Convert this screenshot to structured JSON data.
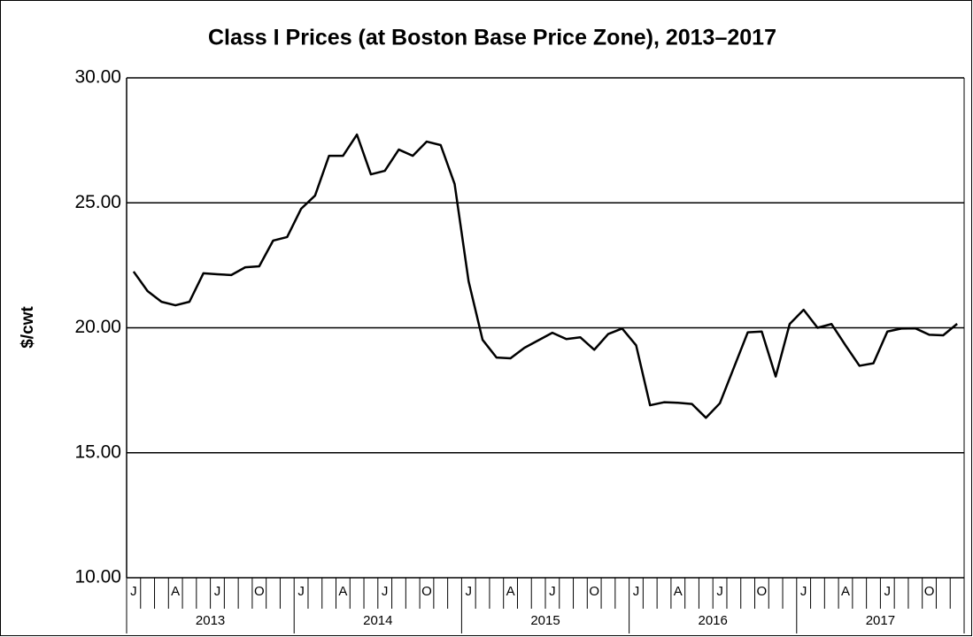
{
  "chart_data": {
    "type": "line",
    "title": "Class I Prices (at Boston Base Price Zone), 2013–2017",
    "y_label": "$/cwt",
    "categories": [
      "J",
      null,
      null,
      "A",
      null,
      null,
      "J",
      null,
      null,
      "O",
      null,
      null,
      "J",
      null,
      null,
      "A",
      null,
      null,
      "J",
      null,
      null,
      "O",
      null,
      null,
      "J",
      null,
      null,
      "A",
      null,
      null,
      "J",
      null,
      null,
      "O",
      null,
      null,
      "J",
      null,
      null,
      "A",
      null,
      null,
      "J",
      null,
      null,
      "O",
      null,
      null,
      "J",
      null,
      null,
      "A",
      null,
      null,
      "J",
      null,
      null,
      "O",
      null,
      null
    ],
    "year_groups": [
      "2013",
      "2014",
      "2015",
      "2016",
      "2017"
    ],
    "series": [
      {
        "color": "#000000",
        "values": [
          22.25,
          21.47,
          21.04,
          20.9,
          21.04,
          22.18,
          22.14,
          22.11,
          22.42,
          22.46,
          23.49,
          23.63,
          24.76,
          25.29,
          26.88,
          26.88,
          27.73,
          26.14,
          26.28,
          27.13,
          26.88,
          27.45,
          27.31,
          25.75,
          21.86,
          19.52,
          18.81,
          18.78,
          19.2,
          19.5,
          19.8,
          19.55,
          19.62,
          19.12,
          19.75,
          19.97,
          19.3,
          16.9,
          17.02,
          17.0,
          16.95,
          16.4,
          16.98,
          18.4,
          19.82,
          19.85,
          18.05,
          20.15,
          20.72,
          20.0,
          20.15,
          19.3,
          18.48,
          18.58,
          19.85,
          19.97,
          19.98,
          19.72,
          19.7,
          20.16
        ]
      }
    ],
    "ylim": [
      10,
      30
    ],
    "yticks": [
      {
        "value": 10,
        "label": "10.00"
      },
      {
        "value": 15,
        "label": "15.00"
      },
      {
        "value": 20,
        "label": "20.00"
      },
      {
        "value": 25,
        "label": "25.00"
      },
      {
        "value": 30,
        "label": "30.00"
      }
    ],
    "grid": true
  }
}
